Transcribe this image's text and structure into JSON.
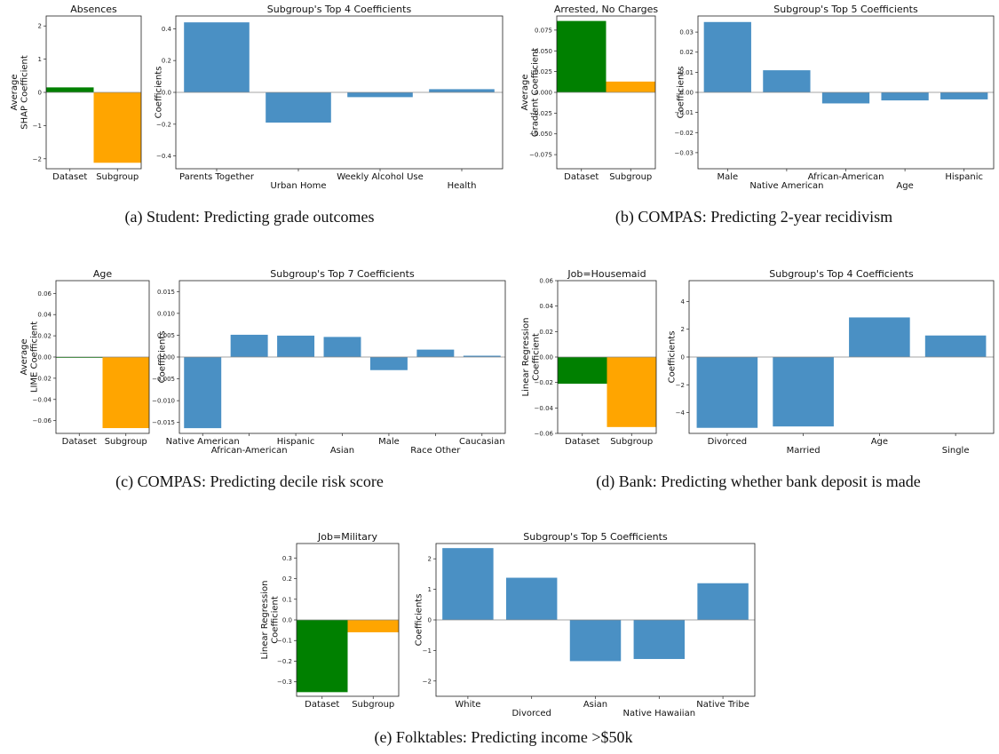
{
  "colors": {
    "dataset": "#008000",
    "subgroup": "#ffa500",
    "coef": "#4a90c4"
  },
  "chart_data": [
    {
      "type": "bar",
      "panel": "a",
      "title": "Absences",
      "ylabel": [
        "Average",
        "SHAP Coefficient"
      ],
      "categories": [
        "Dataset",
        "Subgroup"
      ],
      "values": [
        0.15,
        -2.12
      ],
      "ylim": [
        -2.3,
        2.3
      ],
      "yticks": [
        -2,
        -1,
        0,
        1,
        2
      ],
      "yticklabels": [
        "−2",
        "−1",
        "0",
        "1",
        "2"
      ]
    },
    {
      "type": "bar",
      "panel": "a",
      "title": "Subgroup's Top 4 Coefficients",
      "ylabel": [
        "Coefficients"
      ],
      "categories": [
        "Parents Together",
        "Urban Home",
        "Weekly Alcohol Use",
        "Health"
      ],
      "values": [
        0.44,
        -0.19,
        -0.03,
        0.02
      ],
      "ylim": [
        -0.48,
        0.48
      ],
      "yticks": [
        -0.4,
        -0.2,
        0,
        0.2,
        0.4
      ],
      "yticklabels": [
        "−0.4",
        "−0.2",
        "0.0",
        "0.2",
        "0.4"
      ]
    },
    {
      "type": "bar",
      "panel": "b",
      "title": "Arrested, No Charges",
      "ylabel": [
        "Average",
        "Gradient Coefficient"
      ],
      "categories": [
        "Dataset",
        "Subgroup"
      ],
      "values": [
        0.086,
        0.013
      ],
      "ylim": [
        -0.092,
        0.092
      ],
      "yticks": [
        -0.075,
        -0.05,
        -0.025,
        0,
        0.025,
        0.05,
        0.075
      ],
      "yticklabels": [
        "−0.075",
        "−0.050",
        "−0.025",
        "0.000",
        "0.025",
        "0.050",
        "0.075"
      ]
    },
    {
      "type": "bar",
      "panel": "b",
      "title": "Subgroup's Top 5 Coefficients",
      "ylabel": [
        "Coefficients"
      ],
      "categories": [
        "Male",
        "Native American",
        "African-American",
        "Age",
        "Hispanic"
      ],
      "values": [
        0.035,
        0.011,
        -0.0055,
        -0.004,
        -0.0035
      ],
      "ylim": [
        -0.038,
        0.038
      ],
      "yticks": [
        -0.03,
        -0.02,
        -0.01,
        0,
        0.01,
        0.02,
        0.03
      ],
      "yticklabels": [
        "−0.03",
        "−0.02",
        "−0.01",
        "0.00",
        "0.01",
        "0.02",
        "0.03"
      ]
    },
    {
      "type": "bar",
      "panel": "c",
      "title": "Age",
      "ylabel": [
        "Average",
        "LIME Coefficient"
      ],
      "categories": [
        "Dataset",
        "Subgroup"
      ],
      "values": [
        -0.0004,
        -0.067
      ],
      "ylim": [
        -0.072,
        0.072
      ],
      "yticks": [
        -0.06,
        -0.04,
        -0.02,
        0,
        0.02,
        0.04,
        0.06
      ],
      "yticklabels": [
        "−0.06",
        "−0.04",
        "−0.02",
        "0.00",
        "0.02",
        "0.04",
        "0.06"
      ]
    },
    {
      "type": "bar",
      "panel": "c",
      "title": "Subgroup's Top 7 Coefficients",
      "ylabel": [
        "Coefficients"
      ],
      "categories": [
        "Native American",
        "African-American",
        "Hispanic",
        "Asian",
        "Male",
        "Race Other",
        "Caucasian"
      ],
      "values": [
        -0.0163,
        0.0051,
        0.0049,
        0.0046,
        -0.003,
        0.0017,
        0.0003
      ],
      "ylim": [
        -0.0175,
        0.0175
      ],
      "yticks": [
        -0.015,
        -0.01,
        -0.005,
        0,
        0.005,
        0.01,
        0.015
      ],
      "yticklabels": [
        "−0.015",
        "−0.010",
        "−0.005",
        "0.000",
        "0.005",
        "0.010",
        "0.015"
      ]
    },
    {
      "type": "bar",
      "panel": "d",
      "title": "Job=Housemaid",
      "ylabel": [
        "Linear Regression",
        "Coefficient"
      ],
      "categories": [
        "Dataset",
        "Subgroup"
      ],
      "values": [
        -0.021,
        -0.055
      ],
      "ylim": [
        -0.06,
        0.06
      ],
      "yticks": [
        -0.06,
        -0.04,
        -0.02,
        0,
        0.02,
        0.04,
        0.06
      ],
      "yticklabels": [
        "−0.06",
        "−0.04",
        "−0.02",
        "0.00",
        "0.02",
        "0.04",
        "0.06"
      ]
    },
    {
      "type": "bar",
      "panel": "d",
      "title": "Subgroup's Top 4 Coefficients",
      "ylabel": [
        "Coefficients"
      ],
      "categories": [
        "Divorced",
        "Married",
        "Age",
        "Single"
      ],
      "values": [
        -5.1,
        -5.0,
        2.85,
        1.55
      ],
      "ylim": [
        -5.5,
        5.5
      ],
      "yticks": [
        -4,
        -2,
        0,
        2,
        4
      ],
      "yticklabels": [
        "−4",
        "−2",
        "0",
        "2",
        "4"
      ]
    },
    {
      "type": "bar",
      "panel": "e",
      "title": "Job=Military",
      "ylabel": [
        "Linear Regression",
        "Coefficient"
      ],
      "categories": [
        "Dataset",
        "Subgroup"
      ],
      "values": [
        -0.35,
        -0.06
      ],
      "ylim": [
        -0.37,
        0.37
      ],
      "yticks": [
        -0.3,
        -0.2,
        -0.1,
        0,
        0.1,
        0.2,
        0.3
      ],
      "yticklabels": [
        "−0.3",
        "−0.2",
        "−0.1",
        "0.0",
        "0.1",
        "0.2",
        "0.3"
      ]
    },
    {
      "type": "bar",
      "panel": "e",
      "title": "Subgroup's Top 5 Coefficients",
      "ylabel": [
        "Coefficients"
      ],
      "categories": [
        "White",
        "Divorced",
        "Asian",
        "Native Hawaiian",
        "Native Tribe"
      ],
      "values": [
        2.35,
        1.38,
        -1.35,
        -1.28,
        1.2
      ],
      "ylim": [
        -2.5,
        2.5
      ],
      "yticks": [
        -2,
        -1,
        0,
        1,
        2
      ],
      "yticklabels": [
        "−2",
        "−1",
        "0",
        "1",
        "2"
      ]
    }
  ],
  "captions": [
    "(a) Student: Predicting grade outcomes",
    "(b) COMPAS: Predicting 2-year recidivism",
    "(c) COMPAS: Predicting decile risk score",
    "(d) Bank: Predicting whether bank deposit is made",
    "(e) Folktables: Predicting income >$50k"
  ]
}
